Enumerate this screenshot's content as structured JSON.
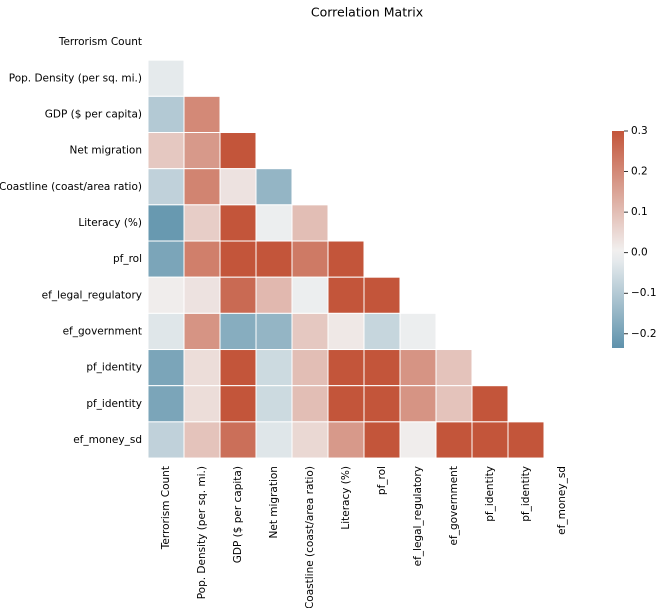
{
  "chart_data": {
    "type": "heatmap",
    "title": "Correlation Matrix",
    "categories": [
      "Terrorism Count",
      "Pop. Density (per sq. mi.)",
      "GDP ($ per capita)",
      "Net migration",
      "Coastline (coast/area ratio)",
      "Literacy (%)",
      "pf_rol",
      "ef_legal_regulatory",
      "ef_government",
      "pf_identity",
      "pf_identity",
      "ef_money_sd"
    ],
    "matrix": [
      [
        null,
        null,
        null,
        null,
        null,
        null,
        null,
        null,
        null,
        null,
        null,
        null
      ],
      [
        -0.02,
        null,
        null,
        null,
        null,
        null,
        null,
        null,
        null,
        null,
        null,
        null
      ],
      [
        -0.1,
        0.2,
        null,
        null,
        null,
        null,
        null,
        null,
        null,
        null,
        null,
        null
      ],
      [
        0.08,
        0.17,
        0.3,
        null,
        null,
        null,
        null,
        null,
        null,
        null,
        null,
        null
      ],
      [
        -0.08,
        0.21,
        0.03,
        -0.15,
        null,
        null,
        null,
        null,
        null,
        null,
        null,
        null
      ],
      [
        -0.22,
        0.07,
        0.3,
        -0.01,
        0.1,
        null,
        null,
        null,
        null,
        null,
        null,
        null
      ],
      [
        -0.19,
        0.22,
        0.3,
        0.3,
        0.23,
        0.3,
        null,
        null,
        null,
        null,
        null,
        null
      ],
      [
        0.01,
        0.03,
        0.26,
        0.11,
        -0.01,
        0.3,
        0.3,
        null,
        null,
        null,
        null,
        null
      ],
      [
        -0.03,
        0.18,
        -0.17,
        -0.15,
        0.08,
        0.02,
        -0.07,
        -0.01,
        null,
        null,
        null,
        null
      ],
      [
        -0.19,
        0.04,
        0.3,
        -0.06,
        0.1,
        0.3,
        0.3,
        0.18,
        0.09,
        null,
        null,
        null
      ],
      [
        -0.19,
        0.04,
        0.3,
        -0.06,
        0.1,
        0.3,
        0.3,
        0.18,
        0.09,
        0.3,
        null,
        null
      ],
      [
        -0.08,
        0.09,
        0.25,
        -0.03,
        0.05,
        0.17,
        0.3,
        0.01,
        0.3,
        0.3,
        0.3,
        null
      ]
    ],
    "center": 0,
    "cmap": {
      "low": "#367898",
      "mid": "#f2f2f2",
      "high": "#c3553a",
      "extent": 0.3
    },
    "colorbar_lim": [
      -0.235,
      0.3
    ],
    "colorbar_ticks": [
      {
        "value": -0.2,
        "label": "−0.2"
      },
      {
        "value": -0.1,
        "label": "−0.1"
      },
      {
        "value": 0,
        "label": "0.0"
      },
      0.1,
      0.2,
      0.3
    ]
  }
}
